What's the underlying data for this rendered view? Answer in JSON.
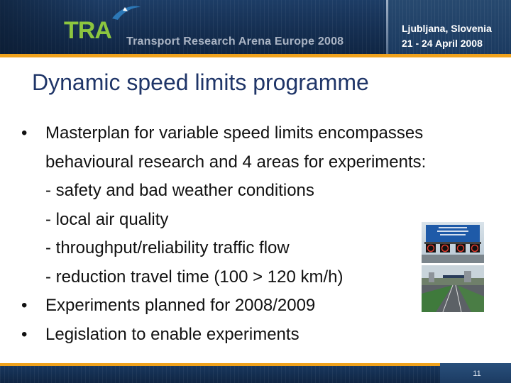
{
  "header": {
    "logo_text": "TRA",
    "conference_title": "Transport Research Arena Europe 2008",
    "location": "Ljubljana, Slovenia",
    "dates": "21 - 24 April 2008",
    "colors": {
      "banner": "#1b3a60",
      "accent": "#f0a21c",
      "logo_green": "#8cc63f"
    }
  },
  "slide": {
    "title": "Dynamic speed limits programme",
    "bullets": [
      {
        "marker": "•",
        "text": "Masterplan for variable speed limits encompasses"
      },
      {
        "marker": "",
        "text": "behavioural research and 4 areas for experiments:"
      },
      {
        "marker": "",
        "text": "- safety and bad weather conditions"
      },
      {
        "marker": "",
        "text": "- local air quality"
      },
      {
        "marker": "",
        "text": "- throughput/reliability traffic flow"
      },
      {
        "marker": "",
        "text": "- reduction travel time (100 > 120 km/h)"
      },
      {
        "marker": "•",
        "text": "Experiments planned for 2008/2009"
      },
      {
        "marker": "•",
        "text": "Legislation to enable experiments"
      }
    ],
    "images": [
      {
        "icon": "overhead-speed-sign-photo"
      },
      {
        "icon": "motorway-photo"
      }
    ]
  },
  "footer": {
    "page_number": "11"
  }
}
